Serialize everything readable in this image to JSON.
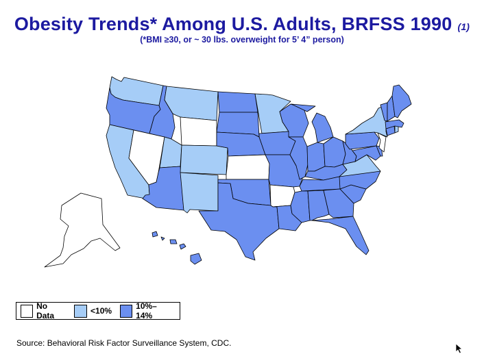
{
  "title": "Obesity Trends* Among U.S. Adults, BRFSS 1990",
  "title_ref": "(1)",
  "subtitle": "(*BMI ≥30, or ~ 30 lbs. overweight for 5’ 4” person)",
  "legend": [
    {
      "label": "No Data",
      "color": "#ffffff"
    },
    {
      "label": "<10%",
      "color": "#a6cdf7"
    },
    {
      "label": "10%–14%",
      "color": "#6b8ff0"
    }
  ],
  "source": "Source: Behavioral Risk Factor Surveillance System, CDC.",
  "colors": {
    "no_data": "#ffffff",
    "under_10": "#a6cdf7",
    "ten_to_14": "#6b8ff0",
    "title": "#1c1aa0"
  },
  "map_data": {
    "no_data": [
      "NV",
      "WY",
      "KS",
      "AR",
      "NJ",
      "AK"
    ],
    "under_10": [
      "WA",
      "MT",
      "MN",
      "CA",
      "UT",
      "CO",
      "NM",
      "NY",
      "VA",
      "RI"
    ],
    "ten_to_14": [
      "OR",
      "ID",
      "ND",
      "SD",
      "NE",
      "AZ",
      "TX",
      "OK",
      "IA",
      "MO",
      "LA",
      "WI",
      "IL",
      "MI",
      "IN",
      "OH",
      "KY",
      "TN",
      "MS",
      "AL",
      "GA",
      "FL",
      "SC",
      "NC",
      "WV",
      "PA",
      "MD",
      "DE",
      "CT",
      "MA",
      "VT",
      "NH",
      "ME",
      "HI"
    ]
  }
}
